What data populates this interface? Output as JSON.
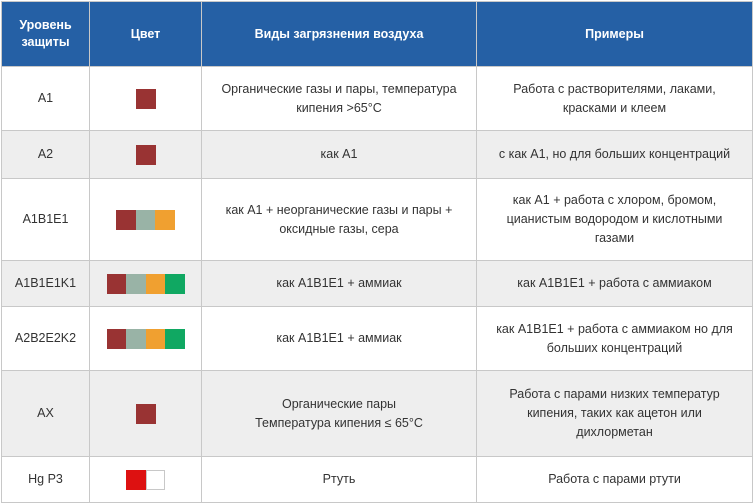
{
  "table": {
    "headers": {
      "level": "Уровень защиты",
      "color": "Цвет",
      "pollution": "Виды загрязнения воздуха",
      "examples": "Примеры"
    },
    "rows": [
      {
        "level": "A1",
        "colors": [
          "#993333"
        ],
        "pollution": [
          "Органические газы и пары, температура",
          "кипения >65°С"
        ],
        "examples": [
          "Работа с растворителями, лаками,",
          "красками и клеем"
        ]
      },
      {
        "level": "A2",
        "colors": [
          "#993333"
        ],
        "pollution": [
          "как А1"
        ],
        "examples": [
          "с как А1, но для больших концентраций"
        ]
      },
      {
        "level": "A1B1E1",
        "colors": [
          "#993333",
          "#99b3a6",
          "#f0a030"
        ],
        "pollution": [
          "как А1 + неорганические газы и пары +",
          "оксидные газы, сера"
        ],
        "examples": [
          "как А1 + работа с хлором, бромом,",
          "цианистым водородом и  кислотными",
          "газами"
        ]
      },
      {
        "level": "A1B1E1K1",
        "colors": [
          "#993333",
          "#99b3a6",
          "#f0a030",
          "#10a862"
        ],
        "pollution": [
          "как А1В1Е1 + аммиак"
        ],
        "examples": [
          "как А1В1Е1 + работа с аммиаком"
        ]
      },
      {
        "level": "A2B2E2K2",
        "colors": [
          "#993333",
          "#99b3a6",
          "#f0a030",
          "#10a862"
        ],
        "pollution": [
          "как А1В1Е1 + аммиак"
        ],
        "examples": [
          "как А1В1Е1 + работа с аммиаком но для",
          "больших концентраций"
        ]
      },
      {
        "level": "AX",
        "colors": [
          "#993333"
        ],
        "pollution": [
          "Органические пары",
          "Температура кипения ≤ 65°С"
        ],
        "examples": [
          "Работа с парами низких температур",
          "кипения, таких как ацетон или",
          "дихлорметан"
        ]
      },
      {
        "level": "Hg P3",
        "colors": [
          "#dd1111",
          "#ffffff"
        ],
        "pollution": [
          "Ртуть"
        ],
        "examples": [
          "Работа с парами ртути"
        ]
      }
    ]
  }
}
